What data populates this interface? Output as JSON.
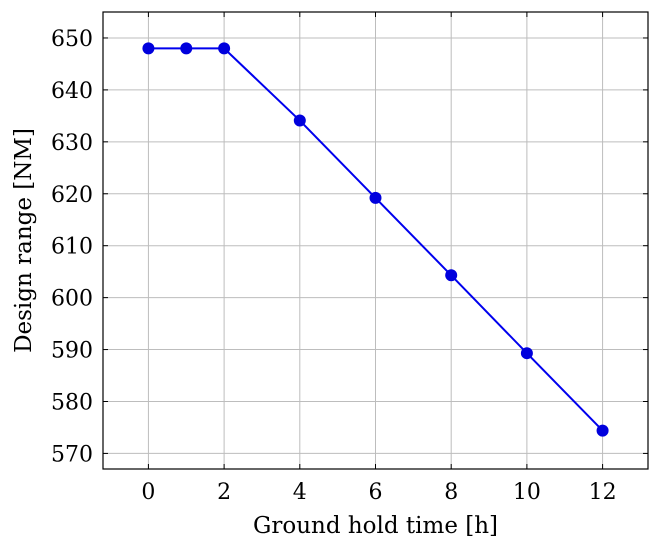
{
  "chart_data": {
    "type": "line",
    "xlabel": "Ground hold time [h]",
    "ylabel": "Design range [NM]",
    "xlim": [
      -1.2,
      13.2
    ],
    "ylim": [
      567,
      655
    ],
    "xticks": [
      0,
      2,
      4,
      6,
      8,
      10,
      12
    ],
    "yticks": [
      570,
      580,
      590,
      600,
      610,
      620,
      630,
      640,
      650
    ],
    "grid": true,
    "series": [
      {
        "color": "#0000ee",
        "x": [
          0,
          1,
          2,
          4,
          6,
          8,
          10,
          12
        ],
        "y": [
          648,
          648,
          648,
          634.1,
          619.2,
          604.3,
          589.3,
          574.4
        ]
      }
    ]
  }
}
